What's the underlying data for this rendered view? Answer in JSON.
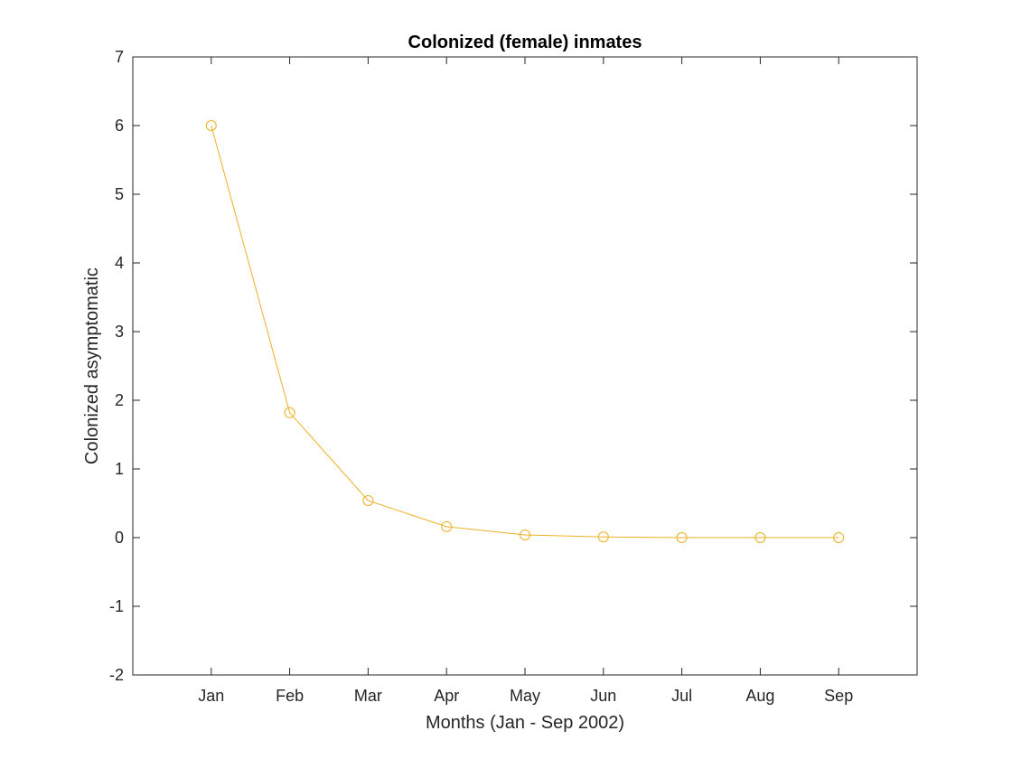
{
  "chart_data": {
    "type": "line",
    "title": "Colonized (female) inmates",
    "xlabel": "Months (Jan - Sep 2002)",
    "ylabel": "Colonized asymptomatic",
    "categories": [
      "Jan",
      "Feb",
      "Mar",
      "Apr",
      "May",
      "Jun",
      "Jul",
      "Aug",
      "Sep"
    ],
    "series": [
      {
        "values": [
          6.0,
          1.82,
          0.54,
          0.16,
          0.04,
          0.01,
          0.0,
          0.0,
          0.0
        ],
        "color": "#EDB120",
        "marker": "circle"
      }
    ],
    "xlim": [
      0,
      10
    ],
    "ylim": [
      -2,
      7
    ],
    "yticks": [
      "-2",
      "-1",
      "0",
      "1",
      "2",
      "3",
      "4",
      "5",
      "6",
      "7"
    ],
    "grid": false,
    "legend": "none"
  }
}
